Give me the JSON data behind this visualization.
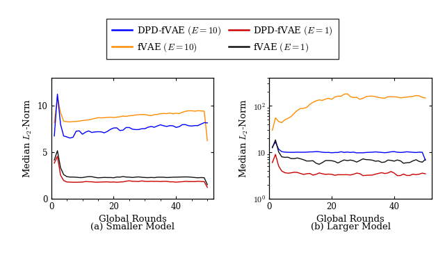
{
  "colors": {
    "dpd_e10": "#0000ff",
    "fvae_e10": "#ff8c00",
    "dpd_e1": "#cc0000",
    "fvae_e1": "#111111"
  },
  "subplot_a_title": "(a) Smaller Model",
  "subplot_b_title": "(b) Larger Model",
  "xlabel": "Global Rounds",
  "ylabel": "Median $L_2$-Norm",
  "n_rounds": 50,
  "seed": 7
}
